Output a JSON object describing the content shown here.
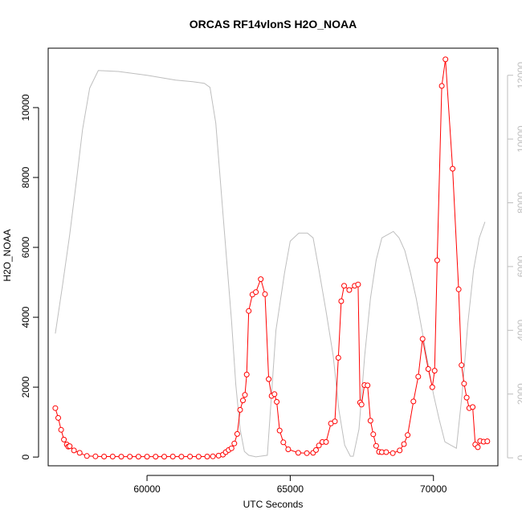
{
  "chart_data": {
    "type": "line",
    "title": "ORCAS RF14vlonS H2O_NOAA",
    "xlabel": "UTC Seconds",
    "ylabel": "H2O_NOAA",
    "xlim": [
      56550,
      72250
    ],
    "ylim": [
      -250,
      11700
    ],
    "y2lim": [
      -250,
      12850
    ],
    "x_ticks": [
      60000,
      65000,
      70000
    ],
    "x_tick_labels": [
      "60000",
      "65000",
      "70000"
    ],
    "y_ticks": [
      0,
      2000,
      4000,
      6000,
      8000,
      10000
    ],
    "y_tick_labels": [
      "0",
      "2000",
      "4000",
      "6000",
      "8000",
      "10000"
    ],
    "y2_ticks": [
      0,
      2000,
      4000,
      6000,
      8000,
      10000,
      12000
    ],
    "y2_tick_labels": [
      "0",
      "2000",
      "4000",
      "6000",
      "8000",
      "10000",
      "12000"
    ],
    "grid": false,
    "legend": "none",
    "series": [
      {
        "axis": "left",
        "style": "line+points",
        "color": "#ff0000",
        "x": [
          56800,
          56900,
          57000,
          57100,
          57200,
          57250,
          57300,
          57450,
          57650,
          57900,
          58200,
          58500,
          58800,
          59100,
          59400,
          59700,
          60000,
          60300,
          60600,
          60900,
          61200,
          61500,
          61800,
          62100,
          62300,
          62500,
          62650,
          62750,
          62850,
          62950,
          63050,
          63150,
          63250,
          63350,
          63420,
          63480,
          63550,
          63680,
          63800,
          63970,
          64120,
          64250,
          64350,
          64450,
          64530,
          64630,
          64760,
          64930,
          65280,
          65580,
          65800,
          65900,
          66000,
          66120,
          66250,
          66420,
          66560,
          66680,
          66780,
          66880,
          67060,
          67250,
          67370,
          67440,
          67490,
          67590,
          67700,
          67800,
          67900,
          68000,
          68100,
          68200,
          68350,
          68580,
          68820,
          68970,
          69100,
          69300,
          69470,
          69620,
          69820,
          69960,
          70040,
          70130,
          70290,
          70420,
          70670,
          70880,
          70980,
          71070,
          71160,
          71250,
          71370,
          71460,
          71550,
          71630,
          71750,
          71880
        ],
        "y": [
          1400,
          1120,
          780,
          500,
          360,
          300,
          310,
          190,
          120,
          30,
          20,
          15,
          15,
          12,
          12,
          12,
          12,
          12,
          12,
          15,
          12,
          15,
          12,
          15,
          20,
          40,
          70,
          140,
          200,
          250,
          390,
          660,
          1350,
          1620,
          1780,
          2360,
          4180,
          4650,
          4720,
          5090,
          4660,
          2230,
          1750,
          1800,
          1580,
          760,
          420,
          220,
          120,
          110,
          120,
          200,
          330,
          430,
          430,
          960,
          1020,
          2840,
          4460,
          4900,
          4780,
          4900,
          4940,
          1560,
          1500,
          2060,
          2050,
          1040,
          650,
          320,
          150,
          140,
          140,
          110,
          190,
          370,
          630,
          1590,
          2300,
          3380,
          2520,
          2000,
          2470,
          5630,
          10620,
          11380,
          8250,
          4800,
          2630,
          2100,
          1700,
          1400,
          1430,
          360,
          280,
          460,
          440,
          450
        ]
      },
      {
        "axis": "right",
        "style": "line",
        "color": "#bebebe",
        "x": [
          56800,
          57050,
          57300,
          57550,
          57750,
          58000,
          58300,
          59000,
          60000,
          61000,
          61600,
          62000,
          62200,
          62400,
          62700,
          62950,
          63100,
          63250,
          63400,
          63550,
          63800,
          64200,
          64500,
          64800,
          65000,
          65300,
          65600,
          65800,
          66000,
          66250,
          66500,
          66700,
          66900,
          67100,
          67200,
          67400,
          67600,
          67800,
          68000,
          68200,
          68400,
          68600,
          68800,
          69000,
          69200,
          69400,
          69600,
          69800,
          70000,
          70200,
          70400,
          70600,
          70800,
          71000,
          71200,
          71400,
          71600,
          71800
        ],
        "y": [
          3900,
          5400,
          7000,
          8800,
          10300,
          11600,
          12150,
          12120,
          12000,
          11850,
          11800,
          11750,
          11620,
          10500,
          7100,
          4300,
          2300,
          900,
          200,
          80,
          30,
          80,
          4000,
          5800,
          6800,
          7050,
          7050,
          6900,
          5900,
          4600,
          3200,
          1500,
          400,
          50,
          50,
          900,
          3200,
          5000,
          6200,
          6900,
          7000,
          7100,
          6900,
          6500,
          5800,
          5000,
          4000,
          3000,
          2000,
          1200,
          500,
          400,
          300,
          2000,
          4200,
          5900,
          6900,
          7400
        ]
      }
    ]
  }
}
